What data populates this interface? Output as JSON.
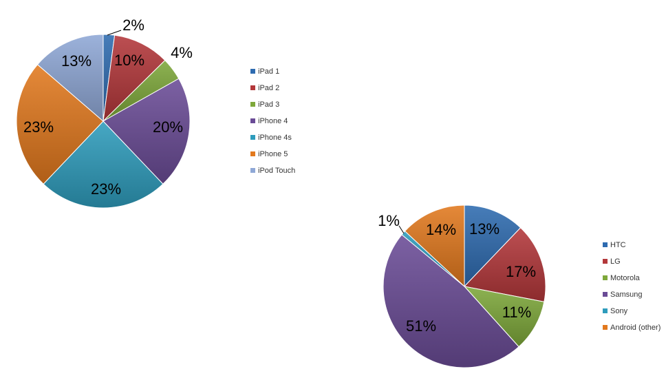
{
  "chart_data": [
    {
      "type": "pie",
      "title": "",
      "categories": [
        "iPad 1",
        "iPad 2",
        "iPad 3",
        "iPhone 4",
        "iPhone 4s",
        "iPhone 5",
        "iPod Touch"
      ],
      "values": [
        2,
        10,
        4,
        20,
        23,
        23,
        13
      ],
      "labels": [
        "2%",
        "10%",
        "4%",
        "20%",
        "23%",
        "23%",
        "13%"
      ],
      "colors": [
        "#2E6BB0",
        "#B3373A",
        "#7EA83A",
        "#6A4B96",
        "#2E9CBC",
        "#E2791E",
        "#8FA8D6"
      ],
      "legend_placement": "right",
      "grid": false
    },
    {
      "type": "pie",
      "title": "",
      "categories": [
        "HTC",
        "LG",
        "Motorola",
        "Samsung",
        "Sony",
        "Android (other)"
      ],
      "values": [
        13,
        17,
        11,
        51,
        1,
        14
      ],
      "labels": [
        "13%",
        "17%",
        "11%",
        "51%",
        "1%",
        "14%"
      ],
      "colors": [
        "#2E6BB0",
        "#B3373A",
        "#7EA83A",
        "#6A4B96",
        "#2E9CBC",
        "#E2791E"
      ],
      "legend_placement": "right",
      "grid": false
    }
  ]
}
